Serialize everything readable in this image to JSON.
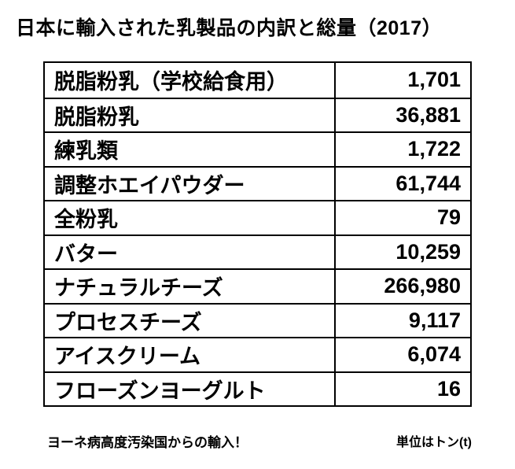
{
  "title": "日本に輸入された乳製品の内訳と総量（2017）",
  "table": {
    "rows": [
      {
        "label": "脱脂粉乳（学校給食用）",
        "value": "1,701"
      },
      {
        "label": "脱脂粉乳",
        "value": "36,881"
      },
      {
        "label": "練乳類",
        "value": "1,722"
      },
      {
        "label": "調整ホエイパウダー",
        "value": "61,744"
      },
      {
        "label": "全粉乳",
        "value": "79"
      },
      {
        "label": "バター",
        "value": "10,259"
      },
      {
        "label": "ナチュラルチーズ",
        "value": "266,980"
      },
      {
        "label": "プロセスチーズ",
        "value": "9,117"
      },
      {
        "label": "アイスクリーム",
        "value": "6,074"
      },
      {
        "label": "フローズンヨーグルト",
        "value": "16"
      }
    ]
  },
  "footer": {
    "note": "ヨーネ病高度汚染国からの輸入！",
    "unit": "単位はトン(t)"
  },
  "chart_data": {
    "type": "table",
    "title": "日本に輸入された乳製品の内訳と総量（2017）",
    "categories": [
      "脱脂粉乳（学校給食用）",
      "脱脂粉乳",
      "練乳類",
      "調整ホエイパウダー",
      "全粉乳",
      "バター",
      "ナチュラルチーズ",
      "プロセスチーズ",
      "アイスクリーム",
      "フローズンヨーグルト"
    ],
    "values": [
      1701,
      36881,
      1722,
      61744,
      79,
      10259,
      266980,
      9117,
      6074,
      16
    ],
    "unit": "トン(t)",
    "annotations": [
      "ヨーネ病高度汚染国からの輸入！"
    ]
  }
}
